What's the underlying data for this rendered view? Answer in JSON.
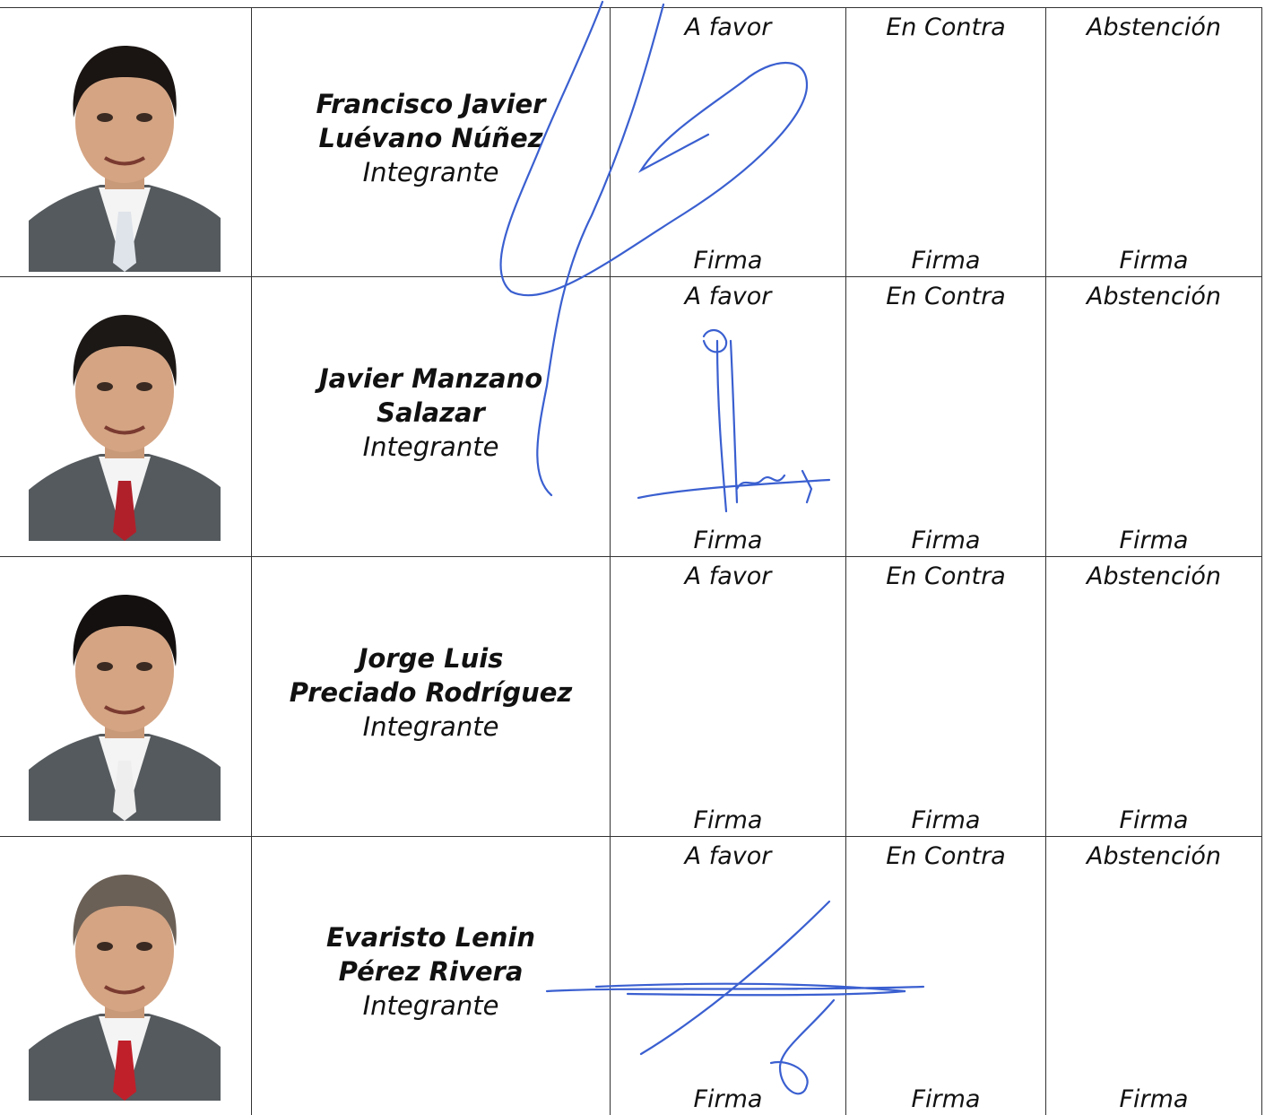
{
  "members": [
    {
      "name": [
        "Francisco Javier",
        "Luévano Núñez"
      ],
      "role": "Integrante",
      "votes": [
        {
          "option": "A favor",
          "sign": "Firma"
        },
        {
          "option": "En Contra",
          "sign": "Firma"
        },
        {
          "option": "Abstención",
          "sign": "Firma"
        }
      ]
    },
    {
      "name": [
        "Javier Manzano",
        "Salazar"
      ],
      "role": "Integrante",
      "votes": [
        {
          "option": "A favor",
          "sign": "Firma"
        },
        {
          "option": "En Contra",
          "sign": "Firma"
        },
        {
          "option": "Abstención",
          "sign": "Firma"
        }
      ]
    },
    {
      "name": [
        "Jorge Luis",
        "Preciado Rodríguez"
      ],
      "role": "Integrante",
      "votes": [
        {
          "option": "A favor",
          "sign": "Firma"
        },
        {
          "option": "En Contra",
          "sign": "Firma"
        },
        {
          "option": "Abstención",
          "sign": "Firma"
        }
      ]
    },
    {
      "name": [
        "Evaristo Lenin",
        "Pérez Rivera"
      ],
      "role": "Integrante",
      "votes": [
        {
          "option": "A favor",
          "sign": "Firma"
        },
        {
          "option": "En Contra",
          "sign": "Firma"
        },
        {
          "option": "Abstención",
          "sign": "Firma"
        }
      ]
    }
  ]
}
